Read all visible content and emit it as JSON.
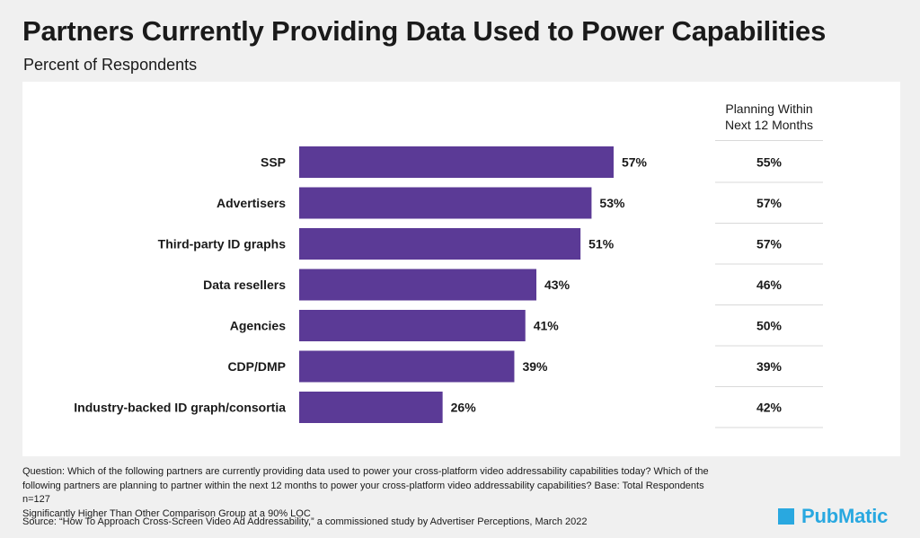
{
  "header": {
    "title": "Partners Currently Providing Data Used to Power Capabilities",
    "subtitle": "Percent of Respondents"
  },
  "colors": {
    "bar": "#5b3a96",
    "divider": "#d9d9d9",
    "brand": "#29a8e0",
    "panel": "#ffffff",
    "background": "#f0f0f0"
  },
  "chart_data": {
    "type": "bar",
    "orientation": "horizontal",
    "title": "Partners Currently Providing Data Used to Power Capabilities",
    "subtitle": "Percent of Respondents",
    "categories": [
      "SSP",
      "Advertisers",
      "Third-party ID graphs",
      "Data resellers",
      "Agencies",
      "CDP/DMP",
      "Industry-backed ID graph/consortia"
    ],
    "values": [
      57,
      53,
      51,
      43,
      41,
      39,
      26
    ],
    "value_labels": [
      "57%",
      "53%",
      "51%",
      "43%",
      "41%",
      "39%",
      "26%"
    ],
    "xlim": [
      0,
      100
    ],
    "grid": false,
    "table_column": {
      "header": [
        "Planning Within",
        "Next 12 Months"
      ],
      "values": [
        "55%",
        "57%",
        "57%",
        "46%",
        "50%",
        "39%",
        "42%"
      ]
    }
  },
  "footnote": {
    "question": "Question: Which of the following partners are currently providing data used to power your cross-platform video addressability capabilities today? Which of the following partners are planning to partner within the next 12 months to power your cross-platform video addressability capabilities? Base: Total Respondents n=127",
    "significance": "Significantly Higher  Than Other Comparison Group at a 90% LOC",
    "source": "Source: “How To Approach Cross-Screen Video Ad Addressability,” a commissioned study by Advertiser Perceptions, March 2022"
  },
  "brand": {
    "logo_text": "PubMatic",
    "logo_icon": "square-mark-icon"
  }
}
